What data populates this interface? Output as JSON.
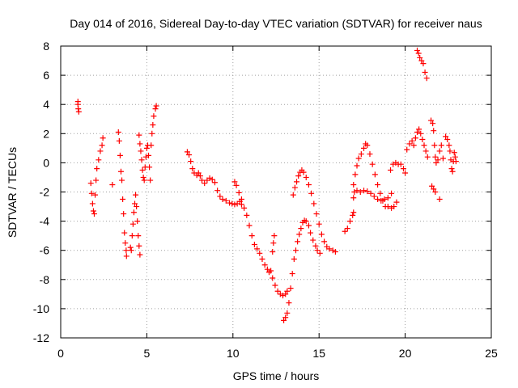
{
  "chart_data": {
    "type": "scatter",
    "title": "Day 014 of 2016, Sidereal Day-to-day VTEC variation (SDTVAR) for receiver naus",
    "xlabel": "GPS time / hours",
    "ylabel": "SDTVAR / TECUs",
    "xlim": [
      0,
      25
    ],
    "ylim": [
      -12,
      8
    ],
    "xticks": [
      0,
      5,
      10,
      15,
      20,
      25
    ],
    "yticks": [
      -12,
      -10,
      -8,
      -6,
      -4,
      -2,
      0,
      2,
      4,
      6,
      8
    ],
    "xtick_labels": [
      "0",
      "5",
      "10",
      "15",
      "20",
      "25"
    ],
    "ytick_labels": [
      "-12",
      "-10",
      "-8",
      "-6",
      "-4",
      "-2",
      "0",
      "2",
      "4",
      "6",
      "8"
    ],
    "grid": true,
    "marker": "+",
    "color": "#ff0000",
    "series": [
      {
        "name": "SDTVAR",
        "points": [
          [
            1.0,
            4.0
          ],
          [
            1.02,
            3.7
          ],
          [
            1.05,
            3.5
          ],
          [
            1.0,
            4.2
          ],
          [
            1.75,
            -1.4
          ],
          [
            1.8,
            -2.1
          ],
          [
            1.85,
            -2.8
          ],
          [
            1.9,
            -3.3
          ],
          [
            1.95,
            -3.5
          ],
          [
            2.0,
            -2.2
          ],
          [
            2.05,
            -1.2
          ],
          [
            2.1,
            -0.4
          ],
          [
            2.2,
            0.2
          ],
          [
            2.3,
            0.8
          ],
          [
            2.4,
            1.2
          ],
          [
            2.45,
            1.7
          ],
          [
            3.0,
            -1.5
          ],
          [
            3.35,
            2.1
          ],
          [
            3.4,
            1.5
          ],
          [
            3.45,
            0.5
          ],
          [
            3.5,
            -0.6
          ],
          [
            3.55,
            -1.2
          ],
          [
            3.6,
            -2.5
          ],
          [
            3.65,
            -3.5
          ],
          [
            3.7,
            -4.8
          ],
          [
            3.75,
            -5.5
          ],
          [
            3.8,
            -6.0
          ],
          [
            3.82,
            -6.4
          ],
          [
            4.05,
            -5.8
          ],
          [
            4.1,
            -6.0
          ],
          [
            4.15,
            -5.0
          ],
          [
            4.2,
            -4.2
          ],
          [
            4.25,
            -3.4
          ],
          [
            4.3,
            -2.8
          ],
          [
            4.35,
            -2.2
          ],
          [
            4.4,
            -3.0
          ],
          [
            4.45,
            -4.0
          ],
          [
            4.5,
            -5.0
          ],
          [
            4.55,
            -5.7
          ],
          [
            4.6,
            -6.3
          ],
          [
            4.55,
            1.9
          ],
          [
            4.6,
            1.3
          ],
          [
            4.65,
            0.8
          ],
          [
            4.7,
            0.2
          ],
          [
            4.75,
            -0.5
          ],
          [
            4.8,
            -1.0
          ],
          [
            4.85,
            -1.2
          ],
          [
            4.9,
            -0.3
          ],
          [
            4.95,
            0.4
          ],
          [
            5.0,
            1.0
          ],
          [
            5.05,
            1.2
          ],
          [
            5.1,
            0.5
          ],
          [
            5.15,
            -0.3
          ],
          [
            5.2,
            -1.2
          ],
          [
            5.25,
            1.2
          ],
          [
            5.3,
            2.0
          ],
          [
            5.35,
            2.6
          ],
          [
            5.4,
            3.2
          ],
          [
            5.5,
            3.7
          ],
          [
            5.55,
            3.9
          ],
          [
            7.35,
            0.75
          ],
          [
            7.45,
            0.55
          ],
          [
            7.55,
            0.1
          ],
          [
            7.65,
            -0.4
          ],
          [
            7.75,
            -0.7
          ],
          [
            7.9,
            -0.85
          ],
          [
            8.0,
            -0.7
          ],
          [
            8.1,
            -0.9
          ],
          [
            8.2,
            -1.2
          ],
          [
            8.35,
            -1.4
          ],
          [
            8.5,
            -1.2
          ],
          [
            8.65,
            -1.05
          ],
          [
            8.8,
            -1.15
          ],
          [
            8.95,
            -1.35
          ],
          [
            9.1,
            -1.9
          ],
          [
            9.25,
            -2.3
          ],
          [
            9.4,
            -2.5
          ],
          [
            9.6,
            -2.6
          ],
          [
            9.8,
            -2.75
          ],
          [
            9.95,
            -2.8
          ],
          [
            10.1,
            -2.85
          ],
          [
            10.25,
            -2.8
          ],
          [
            10.4,
            -2.65
          ],
          [
            10.5,
            -2.85
          ],
          [
            10.1,
            -1.3
          ],
          [
            10.2,
            -1.55
          ],
          [
            10.35,
            -2.05
          ],
          [
            10.5,
            -2.5
          ],
          [
            10.65,
            -3.1
          ],
          [
            10.8,
            -3.6
          ],
          [
            10.95,
            -4.3
          ],
          [
            11.1,
            -5.0
          ],
          [
            11.25,
            -5.6
          ],
          [
            11.4,
            -5.9
          ],
          [
            11.55,
            -6.2
          ],
          [
            11.7,
            -6.6
          ],
          [
            11.85,
            -7.0
          ],
          [
            12.0,
            -7.3
          ],
          [
            12.1,
            -7.5
          ],
          [
            12.2,
            -7.4
          ],
          [
            12.3,
            -7.9
          ],
          [
            12.45,
            -8.4
          ],
          [
            12.6,
            -8.8
          ],
          [
            12.75,
            -9.0
          ],
          [
            12.9,
            -9.1
          ],
          [
            13.05,
            -9.0
          ],
          [
            13.15,
            -8.8
          ],
          [
            12.3,
            -6.1
          ],
          [
            12.35,
            -5.5
          ],
          [
            12.4,
            -5.0
          ],
          [
            12.95,
            -10.8
          ],
          [
            13.05,
            -10.6
          ],
          [
            13.15,
            -10.3
          ],
          [
            13.25,
            -9.6
          ],
          [
            13.35,
            -8.6
          ],
          [
            13.45,
            -7.6
          ],
          [
            13.55,
            -6.6
          ],
          [
            13.65,
            -6.0
          ],
          [
            13.75,
            -5.4
          ],
          [
            13.85,
            -4.9
          ],
          [
            13.95,
            -4.5
          ],
          [
            14.05,
            -4.1
          ],
          [
            14.15,
            -3.95
          ],
          [
            14.25,
            -4.0
          ],
          [
            14.4,
            -4.3
          ],
          [
            14.5,
            -4.8
          ],
          [
            14.65,
            -5.3
          ],
          [
            14.8,
            -5.7
          ],
          [
            14.9,
            -6.0
          ],
          [
            15.05,
            -6.2
          ],
          [
            13.5,
            -2.2
          ],
          [
            13.6,
            -1.7
          ],
          [
            13.7,
            -1.3
          ],
          [
            13.8,
            -0.9
          ],
          [
            13.9,
            -0.65
          ],
          [
            14.0,
            -0.5
          ],
          [
            14.1,
            -0.65
          ],
          [
            14.25,
            -1.0
          ],
          [
            14.4,
            -1.5
          ],
          [
            14.55,
            -2.1
          ],
          [
            14.7,
            -2.8
          ],
          [
            14.85,
            -3.5
          ],
          [
            15.0,
            -4.2
          ],
          [
            15.15,
            -4.9
          ],
          [
            15.3,
            -5.4
          ],
          [
            15.45,
            -5.75
          ],
          [
            15.6,
            -5.9
          ],
          [
            15.8,
            -6.0
          ],
          [
            15.95,
            -6.1
          ],
          [
            16.5,
            -4.7
          ],
          [
            16.65,
            -4.5
          ],
          [
            16.8,
            -4.0
          ],
          [
            16.95,
            -3.6
          ],
          [
            17.0,
            -3.4
          ],
          [
            17.0,
            -2.4
          ],
          [
            17.05,
            -2.0
          ],
          [
            17.2,
            -1.9
          ],
          [
            17.4,
            -2.0
          ],
          [
            17.6,
            -1.9
          ],
          [
            17.8,
            -1.95
          ],
          [
            18.0,
            -2.1
          ],
          [
            18.2,
            -2.3
          ],
          [
            18.4,
            -2.5
          ],
          [
            18.6,
            -2.6
          ],
          [
            18.8,
            -2.5
          ],
          [
            19.0,
            -2.4
          ],
          [
            19.2,
            -2.1
          ],
          [
            17.0,
            -1.5
          ],
          [
            17.1,
            -0.8
          ],
          [
            17.2,
            -0.2
          ],
          [
            17.3,
            0.3
          ],
          [
            17.45,
            0.6
          ],
          [
            17.6,
            1.0
          ],
          [
            17.7,
            1.3
          ],
          [
            17.8,
            1.2
          ],
          [
            17.95,
            0.6
          ],
          [
            18.1,
            -0.1
          ],
          [
            18.25,
            -0.8
          ],
          [
            18.4,
            -1.5
          ],
          [
            18.55,
            -2.1
          ],
          [
            18.7,
            -2.6
          ],
          [
            18.85,
            -3.0
          ],
          [
            19.0,
            -3.0
          ],
          [
            19.2,
            -3.1
          ],
          [
            19.35,
            -3.0
          ],
          [
            19.5,
            -2.7
          ],
          [
            19.15,
            -0.5
          ],
          [
            19.3,
            -0.1
          ],
          [
            19.45,
            0.0
          ],
          [
            19.6,
            -0.1
          ],
          [
            19.75,
            -0.1
          ],
          [
            19.9,
            -0.4
          ],
          [
            20.0,
            -0.7
          ],
          [
            20.1,
            0.9
          ],
          [
            20.25,
            1.3
          ],
          [
            20.4,
            1.5
          ],
          [
            20.5,
            1.2
          ],
          [
            20.6,
            1.7
          ],
          [
            20.7,
            2.1
          ],
          [
            20.8,
            2.3
          ],
          [
            20.9,
            2.0
          ],
          [
            21.0,
            1.6
          ],
          [
            21.1,
            1.2
          ],
          [
            21.2,
            0.8
          ],
          [
            21.3,
            0.4
          ],
          [
            20.7,
            7.7
          ],
          [
            20.78,
            7.5
          ],
          [
            20.85,
            7.2
          ],
          [
            20.95,
            7.0
          ],
          [
            21.05,
            6.8
          ],
          [
            21.15,
            6.2
          ],
          [
            21.25,
            5.8
          ],
          [
            21.5,
            2.9
          ],
          [
            21.6,
            2.7
          ],
          [
            21.65,
            2.2
          ],
          [
            21.7,
            1.2
          ],
          [
            21.75,
            0.4
          ],
          [
            21.8,
            0.0
          ],
          [
            21.9,
            0.2
          ],
          [
            22.0,
            0.8
          ],
          [
            22.1,
            1.2
          ],
          [
            22.2,
            0.3
          ],
          [
            21.55,
            -1.6
          ],
          [
            21.65,
            -1.8
          ],
          [
            21.75,
            -2.0
          ],
          [
            22.0,
            -2.5
          ],
          [
            22.35,
            1.8
          ],
          [
            22.45,
            1.6
          ],
          [
            22.55,
            1.2
          ],
          [
            22.6,
            0.8
          ],
          [
            22.65,
            0.2
          ],
          [
            22.7,
            -0.4
          ],
          [
            22.75,
            -0.6
          ],
          [
            22.8,
            0.1
          ],
          [
            22.85,
            0.7
          ],
          [
            22.9,
            0.4
          ],
          [
            22.95,
            0.1
          ]
        ]
      }
    ]
  }
}
